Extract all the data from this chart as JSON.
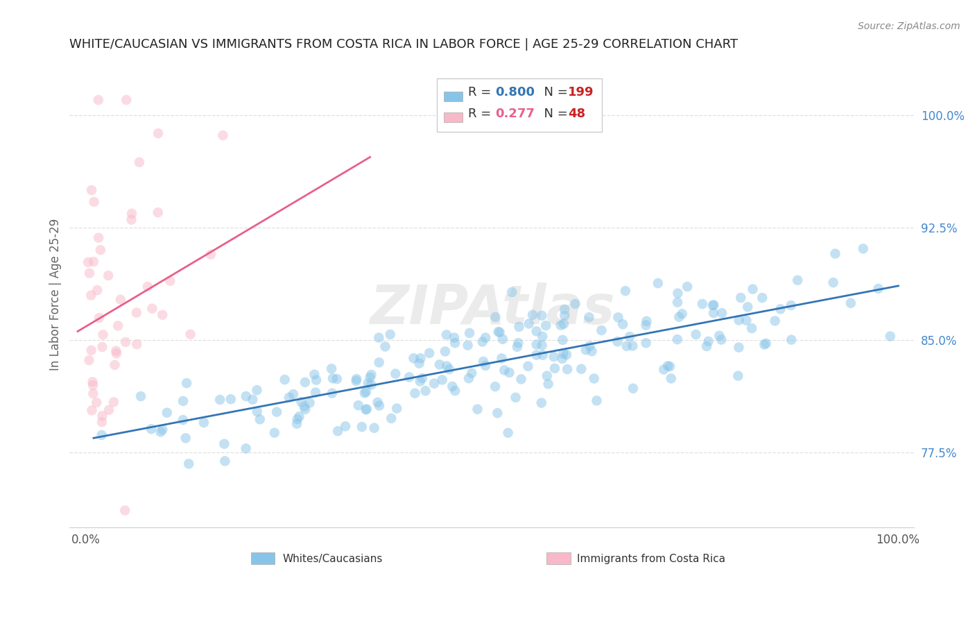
{
  "title": "WHITE/CAUCASIAN VS IMMIGRANTS FROM COSTA RICA IN LABOR FORCE | AGE 25-29 CORRELATION CHART",
  "source": "Source: ZipAtlas.com",
  "ylabel": "In Labor Force | Age 25-29",
  "watermark": "ZIPAtlas",
  "xlim": [
    -0.02,
    1.02
  ],
  "ylim": [
    0.725,
    1.035
  ],
  "ytick_labels": [
    "77.5%",
    "85.0%",
    "92.5%",
    "100.0%"
  ],
  "ytick_values": [
    0.775,
    0.85,
    0.925,
    1.0
  ],
  "blue_R": 0.8,
  "blue_N": 199,
  "pink_R": 0.277,
  "pink_N": 48,
  "blue_color": "#88c4e8",
  "blue_line_color": "#3375b5",
  "pink_color": "#f9b8c8",
  "pink_line_color": "#e8608a",
  "blue_label": "Whites/Caucasians",
  "pink_label": "Immigrants from Costa Rica",
  "background_color": "#ffffff",
  "grid_color": "#e0e0e0",
  "title_color": "#222222",
  "marker_size": 110,
  "marker_alpha": 0.5
}
